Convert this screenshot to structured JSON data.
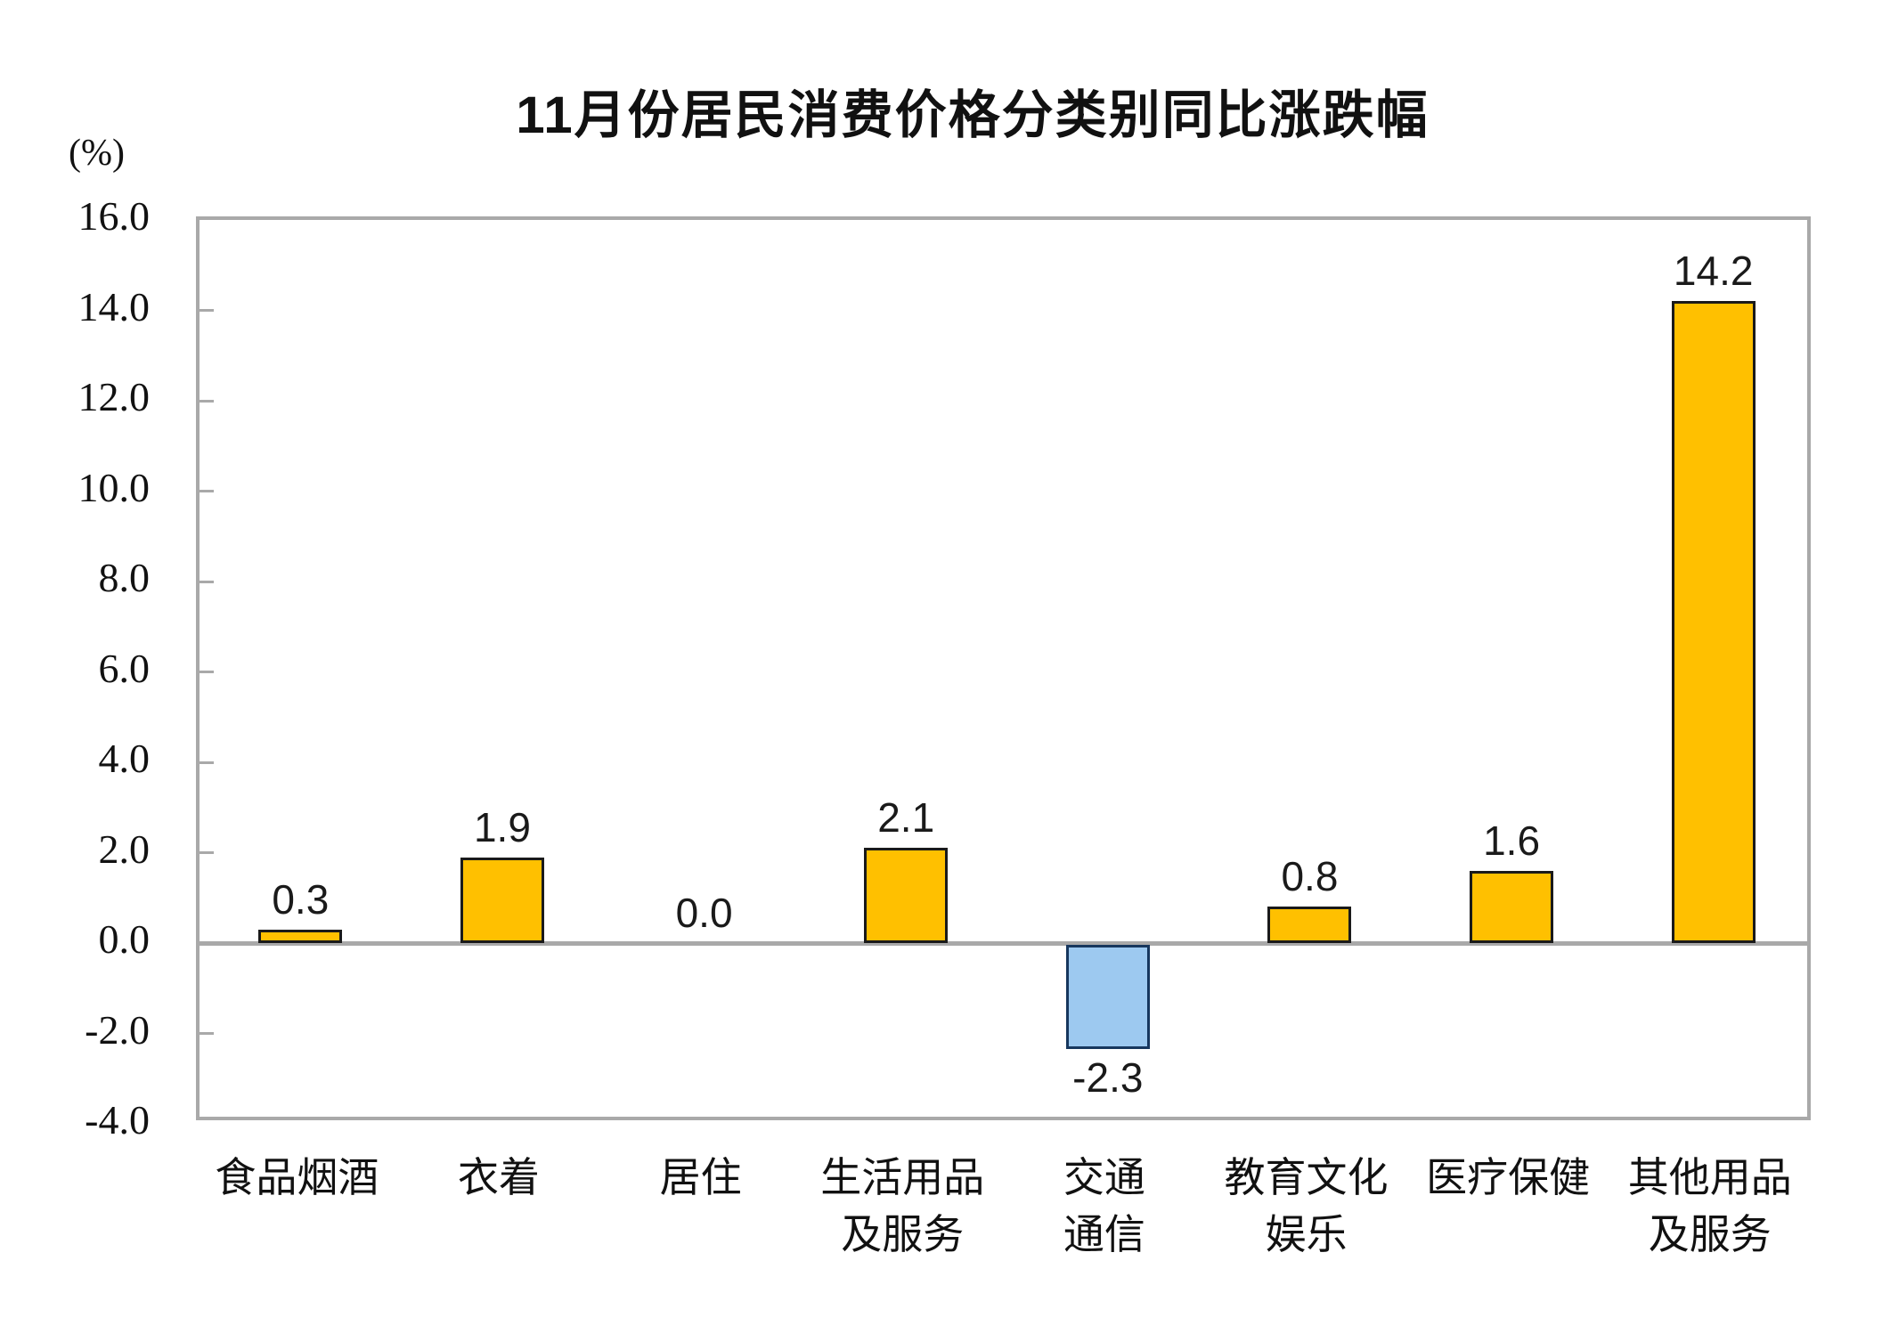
{
  "title": "11月份居民消费价格分类别同比涨跌幅",
  "y_axis_unit": "(%)",
  "chart_data": {
    "type": "bar",
    "title": "11月份居民消费价格分类别同比涨跌幅",
    "ylabel": "(%)",
    "categories": [
      "食品烟酒",
      "衣着",
      "居住",
      "生活用品及服务",
      "交通通信",
      "教育文化娱乐",
      "医疗保健",
      "其他用品及服务"
    ],
    "category_lines": [
      [
        "食品烟酒"
      ],
      [
        "衣着"
      ],
      [
        "居住"
      ],
      [
        "生活用品",
        "及服务"
      ],
      [
        "交通",
        "通信"
      ],
      [
        "教育文化",
        "娱乐"
      ],
      [
        "医疗保健"
      ],
      [
        "其他用品",
        "及服务"
      ]
    ],
    "values": [
      0.3,
      1.9,
      0.0,
      2.1,
      -2.3,
      0.8,
      1.6,
      14.2
    ],
    "value_labels": [
      "0.3",
      "1.9",
      "0.0",
      "2.1",
      "-2.3",
      "0.8",
      "1.6",
      "14.2"
    ],
    "ylim": [
      -4.0,
      16.0
    ],
    "ytick_step": 2.0,
    "ytick_labels": [
      "16.0",
      "14.0",
      "12.0",
      "10.0",
      "8.0",
      "6.0",
      "4.0",
      "2.0",
      "0.0",
      "-2.0",
      "-4.0"
    ],
    "grid": false,
    "legend": false,
    "colors": {
      "positive_bar": "#FFC000",
      "positive_border": "#1A1A1A",
      "negative_bar": "#9DC9F0",
      "negative_border": "#17375E",
      "axis": "#A9A9A9",
      "text": "#111111"
    }
  }
}
